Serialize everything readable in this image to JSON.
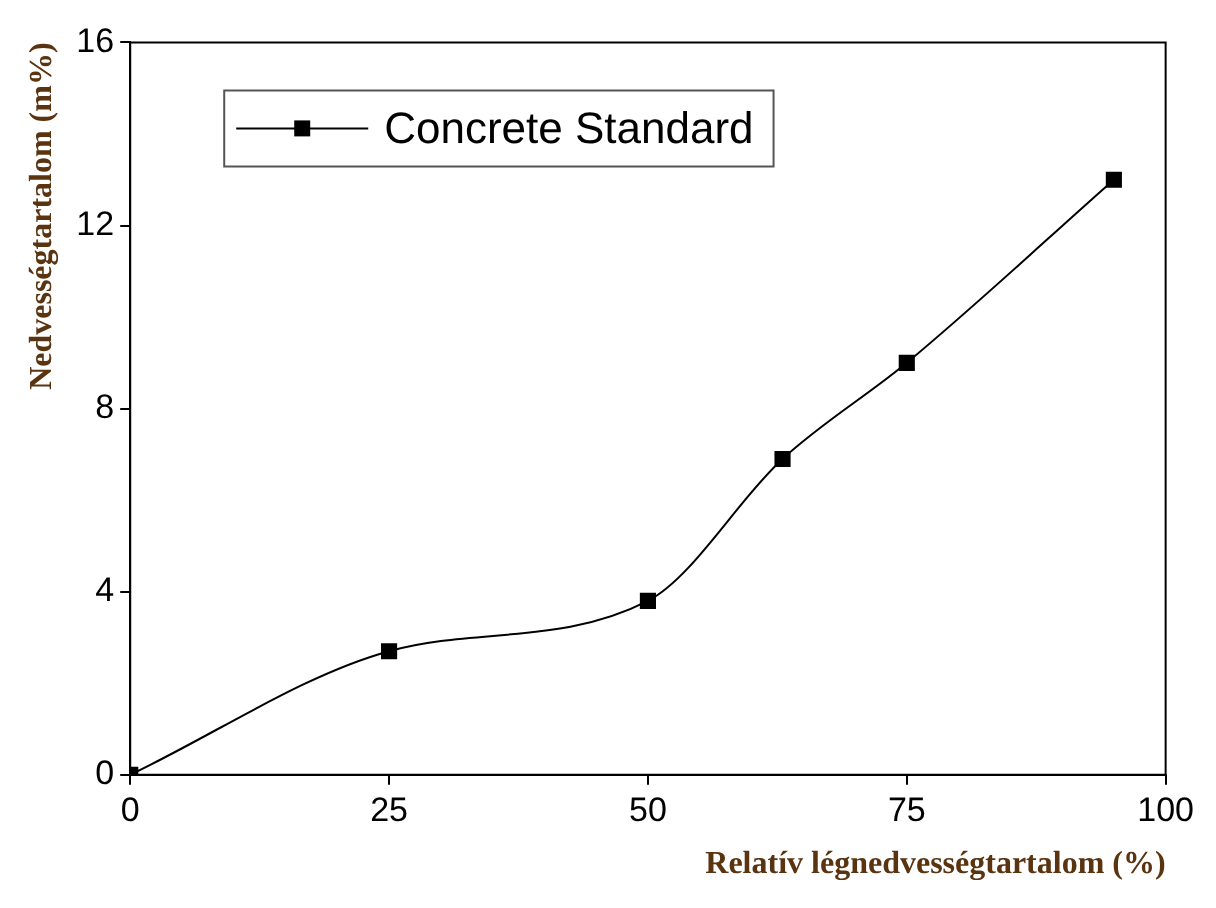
{
  "chart_data": {
    "type": "line",
    "xlabel": "Relatív légnedvességtartalom (%)",
    "ylabel": "Nedvességtartalom (m%)",
    "x": [
      0,
      25,
      50,
      63,
      75,
      95
    ],
    "series": [
      {
        "name": "Concrete Standard",
        "color": "#000000",
        "values": [
          0,
          2.7,
          3.8,
          6.9,
          9,
          13
        ]
      }
    ],
    "xlim": [
      0,
      100
    ],
    "xticks": [
      0,
      25,
      50,
      75,
      100
    ],
    "ylim": [
      0,
      16
    ],
    "yticks": [
      0,
      4,
      8,
      12,
      16
    ],
    "grid": false,
    "legend": "top left",
    "marker": "square",
    "line_style": "solid"
  }
}
